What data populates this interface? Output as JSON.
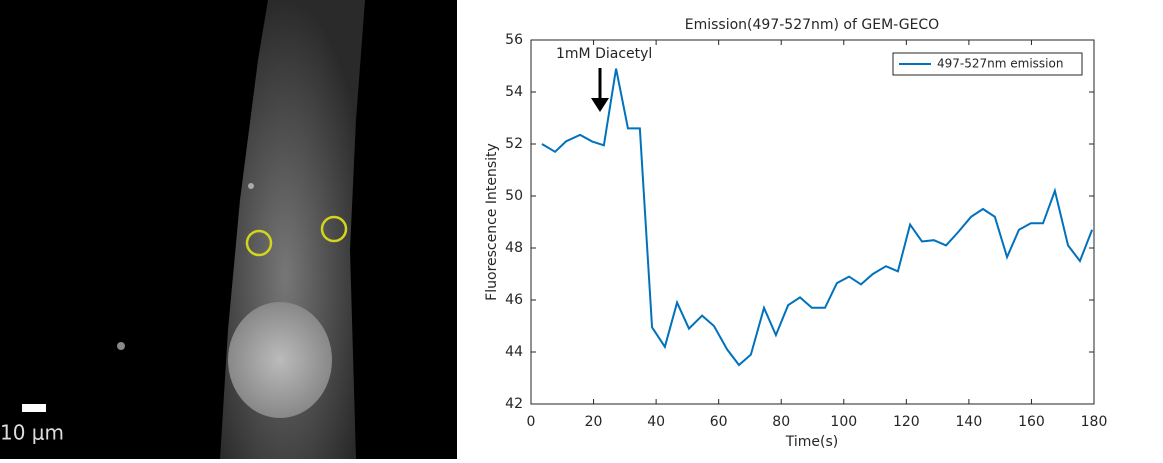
{
  "image": {
    "scale_bar_label": "10 μm"
  },
  "chart_data": {
    "type": "line",
    "title": "Emission(497-527nm) of GEM-GECO",
    "x_label": "Time(s)",
    "y_label": "Fluorescence Intensity",
    "annotation": "1mM Diacetyl",
    "xlim": [
      0,
      180
    ],
    "ylim": [
      42,
      56
    ],
    "xticks": [
      0,
      20,
      40,
      60,
      80,
      100,
      120,
      140,
      160,
      180
    ],
    "yticks": [
      42,
      44,
      46,
      48,
      50,
      52,
      54,
      56
    ],
    "legend": "upper right",
    "grid": false,
    "series": [
      {
        "name": "497-527nm emission",
        "color": "#0072bd",
        "x": [
          3.5,
          7.7,
          11.2,
          15.7,
          19.5,
          23.3,
          27.2,
          31.0,
          34.8,
          38.7,
          42.8,
          46.7,
          50.5,
          54.7,
          58.5,
          62.7,
          66.5,
          70.3,
          74.5,
          78.3,
          82.2,
          86.0,
          89.8,
          94.0,
          97.8,
          101.7,
          105.5,
          109.3,
          113.5,
          117.3,
          121.2,
          125.0,
          128.8,
          132.7,
          136.5,
          140.7,
          144.5,
          148.3,
          152.2,
          156.0,
          159.8,
          163.7,
          167.5,
          171.7,
          175.5,
          179.4
        ],
        "values": [
          52.0,
          51.7,
          52.1,
          52.35,
          52.1,
          51.95,
          54.9,
          52.6,
          52.6,
          44.95,
          44.2,
          45.9,
          44.9,
          45.4,
          45.0,
          44.1,
          43.5,
          43.9,
          45.7,
          44.65,
          45.8,
          46.1,
          45.7,
          45.7,
          46.65,
          46.9,
          46.6,
          47.0,
          47.3,
          47.1,
          48.9,
          48.25,
          48.3,
          48.1,
          48.6,
          49.2,
          49.5,
          49.2,
          47.65,
          48.7,
          48.95,
          48.95,
          50.2,
          48.1,
          47.5,
          48.7
        ]
      }
    ]
  }
}
